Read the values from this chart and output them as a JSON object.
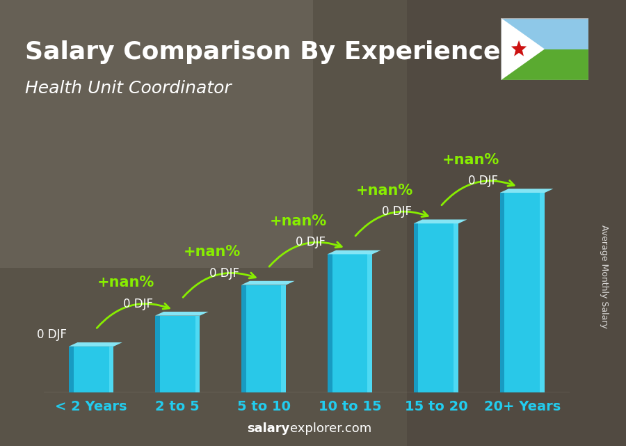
{
  "title": "Salary Comparison By Experience",
  "subtitle": "Health Unit Coordinator",
  "categories": [
    "< 2 Years",
    "2 to 5",
    "5 to 10",
    "10 to 15",
    "15 to 20",
    "20+ Years"
  ],
  "values": [
    1.5,
    2.5,
    3.5,
    4.5,
    5.5,
    6.5
  ],
  "bar_face_color": "#29c8e8",
  "bar_left_color": "#1899c0",
  "bar_right_color": "#55ddf5",
  "bar_top_color": "#88eeff",
  "bar_labels": [
    "0 DJF",
    "0 DJF",
    "0 DJF",
    "0 DJF",
    "0 DJF",
    "0 DJF"
  ],
  "pct_labels": [
    "+nan%",
    "+nan%",
    "+nan%",
    "+nan%",
    "+nan%"
  ],
  "bg_color": "#7a7060",
  "title_color": "#ffffff",
  "subtitle_color": "#ffffff",
  "bar_label_color": "#ffffff",
  "pct_label_color": "#88ee00",
  "arrow_color": "#88ee00",
  "xlabel_color": "#22ccee",
  "ylabel": "Average Monthly Salary",
  "footer_normal": "explorer.com",
  "footer_bold": "salary",
  "title_fontsize": 26,
  "subtitle_fontsize": 18,
  "bar_label_fontsize": 12,
  "pct_label_fontsize": 15,
  "xlabel_fontsize": 14,
  "ylim": [
    0,
    9
  ],
  "flag_sky": "#8ec8e8",
  "flag_green": "#5aaa30",
  "flag_white": "#ffffff",
  "flag_red": "#cc1111"
}
